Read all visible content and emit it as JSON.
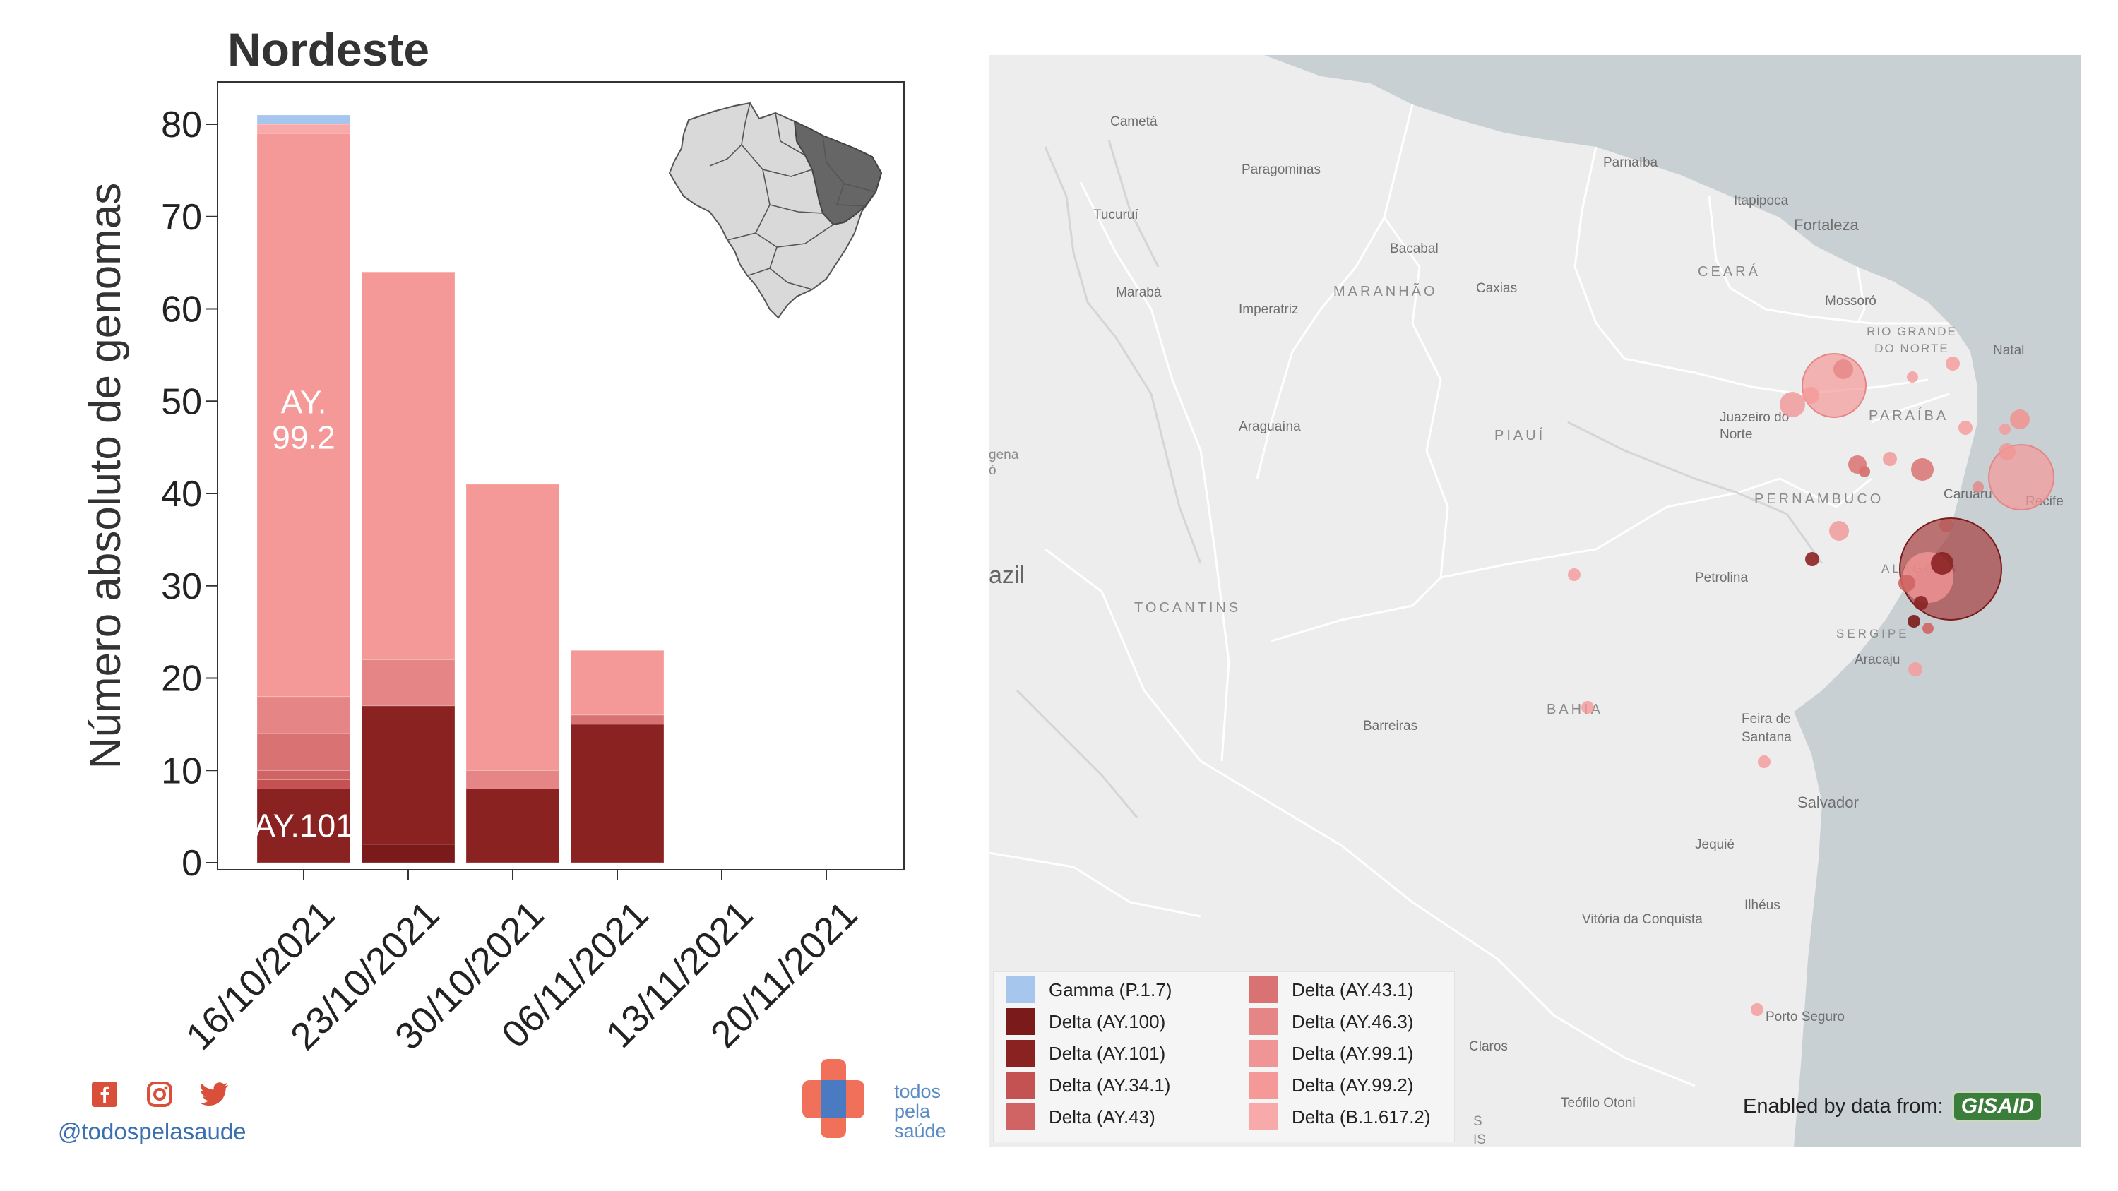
{
  "region_title": "Nordeste",
  "chart_data": {
    "type": "bar",
    "stacked": true,
    "title": "Nordeste",
    "ylabel": "Número absoluto de genomas",
    "xlabel": "",
    "ylim": [
      0,
      82
    ],
    "yticks": [
      0,
      10,
      20,
      30,
      40,
      50,
      60,
      70,
      80
    ],
    "categories": [
      "16/10/2021",
      "23/10/2021",
      "30/10/2021",
      "06/11/2021",
      "13/11/2021",
      "20/11/2021"
    ],
    "series": [
      {
        "name": "Delta (AY.100)",
        "color": "#7a1a1a",
        "values": [
          0,
          2,
          0,
          0,
          0,
          0
        ]
      },
      {
        "name": "Delta (AY.101)",
        "color": "#8b2222",
        "values": [
          8,
          15,
          8,
          15,
          0,
          0
        ]
      },
      {
        "name": "Delta (AY.34.1)",
        "color": "#c45252",
        "values": [
          1,
          0,
          0,
          0,
          0,
          0
        ]
      },
      {
        "name": "Delta (AY.43)",
        "color": "#d06464",
        "values": [
          1,
          0,
          0,
          0,
          0,
          0
        ]
      },
      {
        "name": "Delta (AY.43.1)",
        "color": "#d97272",
        "values": [
          4,
          0,
          0,
          1,
          0,
          0
        ]
      },
      {
        "name": "Delta (AY.46.3)",
        "color": "#e58585",
        "values": [
          4,
          5,
          2,
          0,
          0,
          0
        ]
      },
      {
        "name": "Delta (AY.99.1)",
        "color": "#f09595",
        "values": [
          0,
          0,
          0,
          0,
          0,
          0
        ]
      },
      {
        "name": "Delta (AY.99.2)",
        "color": "#f59898",
        "values": [
          61,
          42,
          31,
          7,
          0,
          0
        ]
      },
      {
        "name": "Delta (B.1.617.2)",
        "color": "#f8aaaa",
        "values": [
          1,
          0,
          0,
          0,
          0,
          0
        ]
      },
      {
        "name": "Gamma (P.1.7)",
        "color": "#a7c6ee",
        "values": [
          1,
          0,
          0,
          0,
          0,
          0
        ]
      }
    ],
    "annotations": [
      {
        "text": "AY.101",
        "category": "16/10/2021",
        "y": 4
      },
      {
        "text": "AY.\n99.2",
        "category": "16/10/2021",
        "y": 48
      }
    ],
    "grid": false,
    "legend": "bottom-left of map"
  },
  "map": {
    "labels": {
      "cities": [
        "Cametá",
        "Paragominas",
        "Tucuruí",
        "Bacabal",
        "Marabá",
        "Caxias",
        "Imperatriz",
        "Araguaína",
        "Parnaíba",
        "Itapipoca",
        "Fortaleza",
        "Mossoró",
        "Natal",
        "Juazeiro do Norte",
        "Caruaru",
        "Recife",
        "Petrolina",
        "Aracaju",
        "Barreiras",
        "Feira de Santana",
        "Salvador",
        "Jequié",
        "Ilhéus",
        "Vitória da Conquista",
        "Porto Seguro",
        "Teófilo Otoni",
        "Claros"
      ],
      "states": [
        "MARANHÃO",
        "CEARÁ",
        "RIO GRANDE DO NORTE",
        "PARAÍBA",
        "PIAUÍ",
        "PERNAMBUCO",
        "ALAGOAS",
        "SERGIPE",
        "TOCANTINS",
        "BAHIA"
      ],
      "country": "azil",
      "edge_fragments": [
        "gena",
        "ó",
        "S",
        "IS"
      ]
    }
  },
  "legend": {
    "items": [
      {
        "label": "Gamma (P.1.7)",
        "color": "#a7c6ee"
      },
      {
        "label": "Delta (AY.100)",
        "color": "#7a1a1a"
      },
      {
        "label": "Delta (AY.101)",
        "color": "#8b2222"
      },
      {
        "label": "Delta (AY.34.1)",
        "color": "#c45252"
      },
      {
        "label": "Delta (AY.43)",
        "color": "#d06464"
      },
      {
        "label": "Delta (AY.43.1)",
        "color": "#d97272"
      },
      {
        "label": "Delta (AY.46.3)",
        "color": "#e58585"
      },
      {
        "label": "Delta (AY.99.1)",
        "color": "#f09595"
      },
      {
        "label": "Delta (AY.99.2)",
        "color": "#f59898"
      },
      {
        "label": "Delta (B.1.617.2)",
        "color": "#f8aaaa"
      }
    ]
  },
  "credit": {
    "text": "Enabled by data from:",
    "logo": "GISAID"
  },
  "footer": {
    "handle": "@todospelasaude",
    "icons": [
      "facebook-icon",
      "instagram-icon",
      "twitter-icon"
    ],
    "logo_text": [
      "todos",
      "pela",
      "saúde"
    ]
  }
}
